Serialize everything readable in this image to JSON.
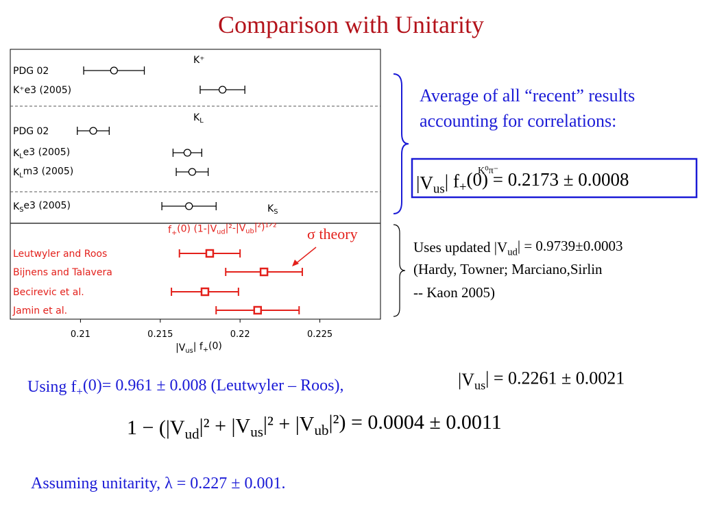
{
  "title": "Comparison with Unitarity",
  "average_note": [
    "Average of all “recent” results",
    "accounting for correlations:"
  ],
  "boxed_formula": {
    "parts": [
      "|V",
      "us",
      "| f",
      "+",
      "(0) = 0.2173 ± 0.0008"
    ],
    "sup": "K⁰π⁻"
  },
  "sigma_note": "σ theory",
  "vud_note": [
    [
      "Uses updated |V",
      "ud",
      "| = 0.9739±0.0003"
    ],
    [
      "(Hardy, Towner; Marciano,Sirlin"
    ],
    [
      " -- Kaon 2005)"
    ]
  ],
  "using_line": [
    "Using f",
    "+",
    "(0)= 0.961 ± 0.008 (Leutwyler – Roos),"
  ],
  "vus_result": [
    "|V",
    "us",
    "| = 0.2261 ± 0.0021"
  ],
  "unitarity_formula": [
    "1 − (|V",
    "ud",
    "|² + |V",
    "us",
    "|² + |V",
    "ub",
    "|²) = 0.0004 ± 0.0011"
  ],
  "assuming_line": "Assuming unitarity, λ = 0.227 ± 0.001.",
  "chart_data": {
    "type": "errorbar",
    "xlim": [
      0.2056,
      0.2288
    ],
    "xticks": [
      0.21,
      0.215,
      0.22,
      0.225
    ],
    "xlabel": [
      "|V",
      "us",
      "| f",
      "+",
      "(0)"
    ],
    "sections": [
      {
        "label": [
          "K⁺"
        ],
        "color": "#000000",
        "marker": "circle",
        "rows": [
          {
            "label": [
              "PDG 02"
            ],
            "value": 0.2121,
            "error": 0.0019
          },
          {
            "label": [
              "K⁺e3 (2005)"
            ],
            "value": 0.2189,
            "error": 0.0014
          }
        ]
      },
      {
        "label": [
          "K",
          "L"
        ],
        "color": "#000000",
        "marker": "circle",
        "rows": [
          {
            "label": [
              "PDG 02"
            ],
            "value": 0.2108,
            "error": 0.001
          },
          {
            "label": [
              "K",
              "L",
              "e3 (2005)"
            ],
            "value": 0.2167,
            "error": 0.0009
          },
          {
            "label": [
              "K",
              "L",
              "m3 (2005)"
            ],
            "value": 0.217,
            "error": 0.001
          }
        ]
      },
      {
        "label": [
          "K",
          "S"
        ],
        "color": "#000000",
        "marker": "circle",
        "rows": [
          {
            "label": [
              "K",
              "S",
              "e3 (2005)"
            ],
            "value": 0.2168,
            "error": 0.0017
          }
        ]
      },
      {
        "label": [
          "f",
          "+",
          "(0)  (1-|V",
          "ud",
          "|²-|V",
          "ub",
          "|²)¹ᐟ²"
        ],
        "color": "#e3201b",
        "marker": "square",
        "rows": [
          {
            "label": [
              "Leutwyler and Roos"
            ],
            "value": 0.2181,
            "error": 0.0019
          },
          {
            "label": [
              "Bijnens and Talavera"
            ],
            "value": 0.2215,
            "error": 0.0024
          },
          {
            "label": [
              "Becirevic et al."
            ],
            "value": 0.2178,
            "error": 0.0021
          },
          {
            "label": [
              "Jamin et al."
            ],
            "value": 0.2211,
            "error": 0.0026
          }
        ]
      }
    ]
  }
}
